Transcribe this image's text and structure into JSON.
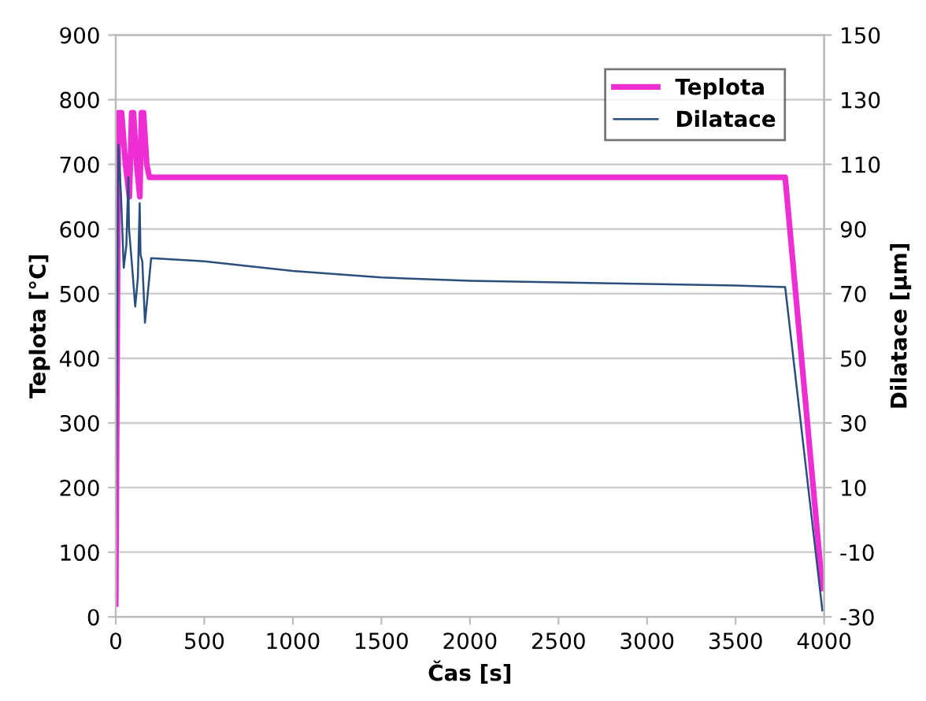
{
  "chart_data": {
    "type": "line",
    "xlabel": "Čas [s]",
    "ylabel": "Teplota [°C]",
    "y2label": "Dilatace [µm]",
    "xlim": [
      0,
      4000
    ],
    "xticks": [
      0,
      500,
      1000,
      1500,
      2000,
      2500,
      3000,
      3500,
      4000
    ],
    "ylim": [
      0,
      900
    ],
    "yticks": [
      0,
      100,
      200,
      300,
      400,
      500,
      600,
      700,
      800,
      900
    ],
    "y2lim": [
      -30,
      150
    ],
    "y2ticks": [
      -30,
      -10,
      10,
      30,
      50,
      70,
      90,
      110,
      130,
      150
    ],
    "grid": "y",
    "legend": "top right",
    "marker": "none",
    "line_style": "solid",
    "series": [
      {
        "name": "Teplota",
        "color": "#ee2ed2",
        "x": [
          0,
          15,
          33,
          55,
          77,
          90,
          100,
          118,
          136,
          145,
          157,
          175,
          190,
          3780,
          3990
        ],
        "values": [
          20,
          780,
          780,
          700,
          650,
          780,
          780,
          700,
          650,
          780,
          780,
          700,
          680,
          680,
          44
        ]
      },
      {
        "name": "Dilatace",
        "color": "#2a4f7f",
        "axis": "y2",
        "x": [
          0,
          15,
          30,
          45,
          60,
          71,
          75,
          90,
          110,
          125,
          135,
          140,
          150,
          165,
          200,
          500,
          1000,
          1500,
          2000,
          2500,
          3000,
          3500,
          3780,
          3990
        ],
        "values": [
          0,
          116,
          100,
          78,
          85,
          106,
          90,
          80,
          66,
          75,
          98,
          82,
          80,
          61,
          81,
          80,
          77,
          75,
          74,
          73.5,
          73,
          72.5,
          72,
          -28
        ]
      }
    ]
  }
}
